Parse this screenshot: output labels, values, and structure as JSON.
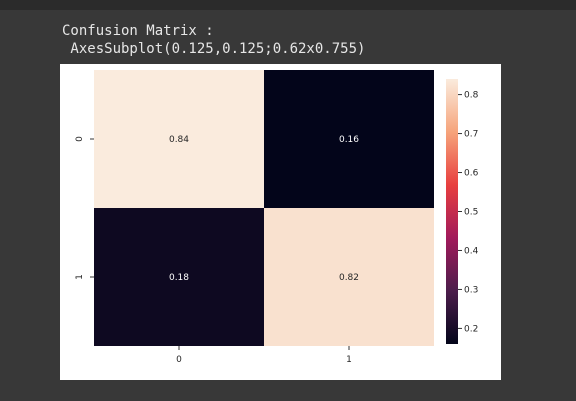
{
  "output": {
    "line1": "Confusion Matrix :",
    "line2": " AxesSubplot(0.125,0.125;0.62x0.755)"
  },
  "chart_data": {
    "type": "heatmap",
    "title": "",
    "xlabel": "",
    "ylabel": "",
    "x_ticks": [
      "0",
      "1"
    ],
    "y_ticks": [
      "0",
      "1"
    ],
    "values": [
      [
        0.84,
        0.16
      ],
      [
        0.18,
        0.82
      ]
    ],
    "cell_labels": [
      [
        "0.84",
        "0.16"
      ],
      [
        "0.18",
        "0.82"
      ]
    ],
    "colormap": "rocket",
    "colorbar": {
      "range": [
        0.16,
        0.84
      ],
      "ticks": [
        "0.2",
        "0.3",
        "0.4",
        "0.5",
        "0.6",
        "0.7",
        "0.8"
      ]
    },
    "grid": false
  }
}
